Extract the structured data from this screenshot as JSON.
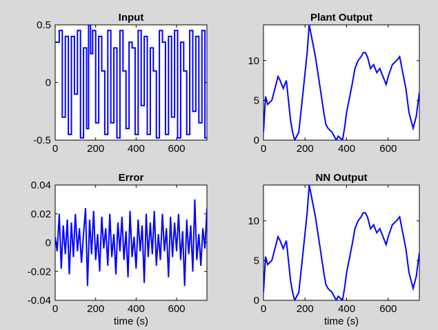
{
  "figure": {
    "background": "#d9d9d9",
    "line_color": "#0000ff"
  },
  "chart_data": [
    {
      "type": "line",
      "title": "Input",
      "xlabel": "",
      "ylabel": "",
      "xlim": [
        0,
        750
      ],
      "ylim": [
        -0.5,
        0.5
      ],
      "xticks": [
        0,
        200,
        400,
        600
      ],
      "xtick_labels": [
        "0",
        "200",
        "400",
        "600"
      ],
      "yticks": [
        -0.5,
        0,
        0.5
      ],
      "ytick_labels": [
        "-0.5",
        "0",
        "0.5"
      ],
      "grid": false,
      "style": "step",
      "series": [
        {
          "x": [
            0,
            20,
            35,
            50,
            65,
            80,
            95,
            110,
            125,
            140,
            155,
            165,
            175,
            185,
            200,
            215,
            230,
            245,
            260,
            275,
            290,
            305,
            320,
            335,
            350,
            365,
            380,
            395,
            410,
            425,
            440,
            455,
            470,
            485,
            500,
            515,
            530,
            545,
            560,
            575,
            590,
            605,
            620,
            635,
            650,
            665,
            680,
            695,
            710,
            725,
            740
          ],
          "y": [
            0.35,
            0.45,
            -0.3,
            0.4,
            -0.45,
            0.4,
            -0.1,
            0.45,
            -0.48,
            0.3,
            -0.4,
            0.5,
            0.25,
            0.45,
            -0.35,
            0.4,
            0.1,
            -0.45,
            0.45,
            -0.35,
            0.3,
            -0.48,
            0.45,
            0.1,
            -0.4,
            0.35,
            0.3,
            -0.45,
            0.45,
            -0.2,
            0.4,
            -0.45,
            0.3,
            0.1,
            -0.48,
            0.45,
            0.35,
            -0.45,
            0.4,
            -0.3,
            0.45,
            -0.48,
            0.35,
            0.1,
            -0.45,
            0.45,
            -0.25,
            0.4,
            -0.35,
            0.45,
            -0.48
          ]
        }
      ]
    },
    {
      "type": "line",
      "title": "Plant Output",
      "xlabel": "",
      "ylabel": "",
      "xlim": [
        0,
        750
      ],
      "ylim": [
        0,
        14.5
      ],
      "xticks": [
        0,
        200,
        400,
        600
      ],
      "xtick_labels": [
        "0",
        "200",
        "400",
        "600"
      ],
      "yticks": [
        0,
        5,
        10
      ],
      "ytick_labels": [
        "0",
        "5",
        "10"
      ],
      "grid": false,
      "series": [
        {
          "x": [
            0,
            10,
            20,
            40,
            60,
            70,
            80,
            95,
            110,
            120,
            130,
            140,
            150,
            170,
            190,
            210,
            220,
            235,
            250,
            270,
            290,
            300,
            310,
            330,
            350,
            360,
            380,
            390,
            400,
            415,
            430,
            440,
            455,
            470,
            480,
            490,
            500,
            515,
            530,
            545,
            560,
            575,
            590,
            600,
            620,
            640,
            655,
            670,
            685,
            700,
            720,
            735,
            750
          ],
          "y": [
            1,
            5.5,
            4.5,
            5,
            7,
            8,
            7.5,
            6.5,
            7.5,
            5,
            2.5,
            1,
            0,
            1,
            6,
            11,
            14.5,
            12.5,
            10.5,
            7,
            3.5,
            2,
            1.5,
            1,
            0,
            0.5,
            0,
            1.5,
            3.5,
            5.5,
            7.5,
            9,
            10,
            10.5,
            11,
            11,
            10.5,
            9,
            9.5,
            8.5,
            9,
            8,
            7,
            8,
            9.5,
            10,
            10.5,
            8.5,
            6.5,
            3.5,
            1.5,
            3,
            6
          ]
        }
      ]
    },
    {
      "type": "line",
      "title": "Error",
      "xlabel": "time (s)",
      "ylabel": "",
      "xlim": [
        0,
        750
      ],
      "ylim": [
        -0.04,
        0.04
      ],
      "xticks": [
        0,
        200,
        400,
        600
      ],
      "xtick_labels": [
        "0",
        "200",
        "400",
        "600"
      ],
      "yticks": [
        -0.04,
        -0.02,
        0,
        0.02,
        0.04
      ],
      "ytick_labels": [
        "-0.04",
        "-0.02",
        "0",
        "0.02",
        "0.04"
      ],
      "grid": false,
      "series": [
        {
          "x": [
            0,
            10,
            20,
            30,
            40,
            50,
            60,
            70,
            80,
            90,
            100,
            110,
            120,
            130,
            140,
            150,
            160,
            170,
            180,
            190,
            200,
            210,
            220,
            230,
            240,
            250,
            260,
            270,
            280,
            290,
            300,
            310,
            320,
            330,
            340,
            350,
            360,
            370,
            380,
            390,
            400,
            410,
            420,
            430,
            440,
            450,
            460,
            470,
            480,
            490,
            500,
            510,
            520,
            530,
            540,
            550,
            560,
            570,
            580,
            590,
            600,
            610,
            620,
            630,
            640,
            650,
            660,
            670,
            680,
            690,
            700,
            710,
            720,
            730,
            740,
            750
          ],
          "y": [
            0.004,
            -0.006,
            0.02,
            -0.018,
            0.012,
            -0.008,
            0.016,
            -0.022,
            0.014,
            -0.01,
            0.02,
            -0.006,
            0.01,
            -0.014,
            0.006,
            0.024,
            -0.03,
            0.016,
            -0.008,
            0.022,
            -0.012,
            0.006,
            -0.02,
            0.018,
            -0.004,
            0.01,
            -0.016,
            0.02,
            -0.01,
            0.006,
            -0.022,
            0.014,
            -0.006,
            0.018,
            -0.012,
            0.008,
            -0.024,
            0.022,
            -0.01,
            0.004,
            -0.018,
            0.016,
            -0.006,
            0.012,
            -0.028,
            0.02,
            -0.01,
            0.014,
            -0.008,
            0.022,
            -0.016,
            0.006,
            -0.012,
            0.02,
            -0.006,
            0.01,
            -0.024,
            0.018,
            -0.01,
            0.014,
            -0.006,
            0.02,
            -0.012,
            0.008,
            -0.03,
            0.016,
            -0.008,
            0.012,
            -0.02,
            0.03,
            -0.012,
            0.006,
            -0.016,
            0.01,
            -0.004,
            0.024
          ]
        }
      ]
    },
    {
      "type": "line",
      "title": "NN Output",
      "xlabel": "time (s)",
      "ylabel": "",
      "xlim": [
        0,
        750
      ],
      "ylim": [
        0,
        14.5
      ],
      "xticks": [
        0,
        200,
        400,
        600
      ],
      "xtick_labels": [
        "0",
        "200",
        "400",
        "600"
      ],
      "yticks": [
        0,
        5,
        10
      ],
      "ytick_labels": [
        "0",
        "5",
        "10"
      ],
      "grid": false,
      "series": [
        {
          "x": [
            0,
            10,
            20,
            40,
            60,
            70,
            80,
            95,
            110,
            120,
            130,
            140,
            150,
            170,
            190,
            210,
            220,
            235,
            250,
            270,
            290,
            300,
            310,
            330,
            350,
            360,
            380,
            390,
            400,
            415,
            430,
            440,
            455,
            470,
            480,
            490,
            500,
            515,
            530,
            545,
            560,
            575,
            590,
            600,
            620,
            640,
            655,
            670,
            685,
            700,
            720,
            735,
            750
          ],
          "y": [
            1,
            5.5,
            4.5,
            5,
            7,
            8,
            7.5,
            6.5,
            7.5,
            5,
            2.5,
            1,
            0,
            1,
            6,
            11,
            14.5,
            12.5,
            10.5,
            7,
            3.5,
            2,
            1.5,
            1,
            0,
            0.5,
            0,
            1.5,
            3.5,
            5.5,
            7.5,
            9,
            10,
            10.5,
            11,
            11,
            10.5,
            9,
            9.5,
            8.5,
            9,
            8,
            7,
            8,
            9.5,
            10,
            10.5,
            8.5,
            6.5,
            3.5,
            1.5,
            3,
            6
          ]
        }
      ]
    }
  ]
}
